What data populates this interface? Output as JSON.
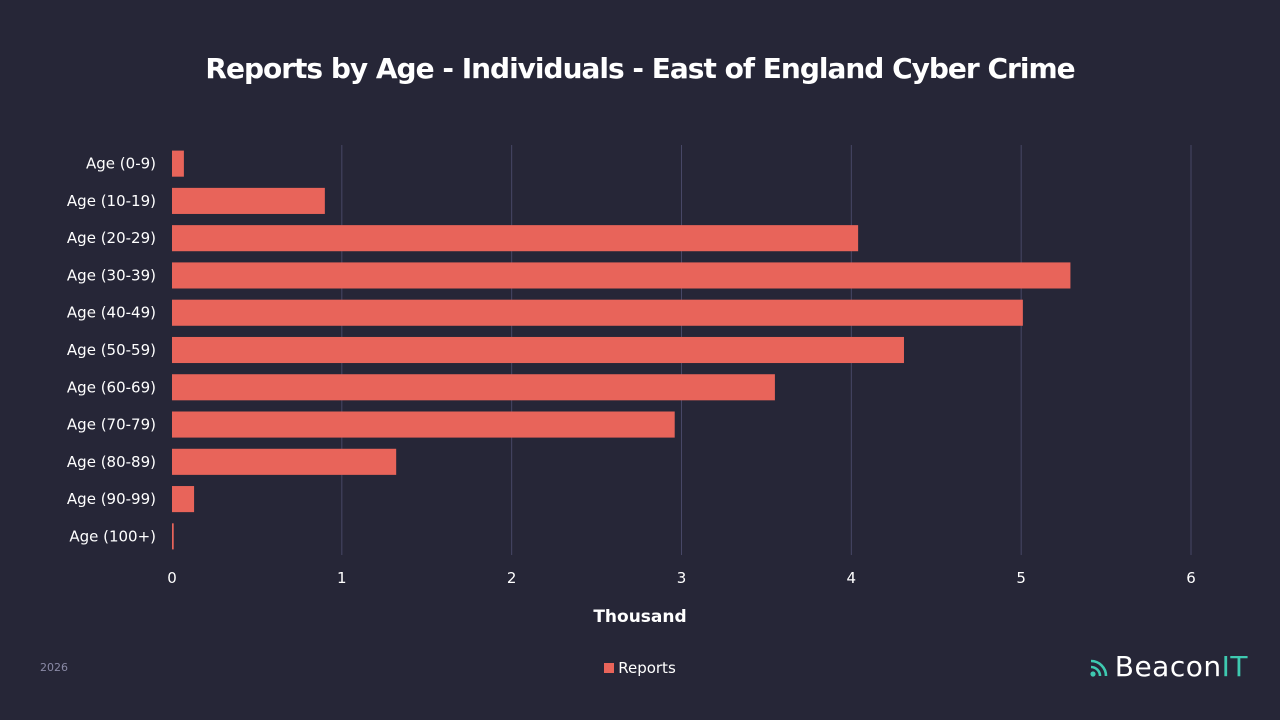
{
  "colors": {
    "background": "#262637",
    "bar": "#e8645a",
    "grid": "#474766",
    "brand_accent": "#3ec9b0"
  },
  "footer": {
    "year": "2026",
    "brand_main": "Beacon",
    "brand_accent": "IT",
    "brand_icon": "signal-icon"
  },
  "chart_data": {
    "type": "bar",
    "orientation": "horizontal",
    "title": "Reports by Age - Individuals - East of England Cyber Crime",
    "xlabel": "Thousand",
    "ylabel": "",
    "xlim": [
      0,
      6
    ],
    "x_ticks": [
      "0",
      "1",
      "2",
      "3",
      "4",
      "5",
      "6"
    ],
    "grid": true,
    "legend_position": "bottom",
    "categories": [
      "Age (0-9)",
      "Age (10-19)",
      "Age (20-29)",
      "Age (30-39)",
      "Age (40-49)",
      "Age (50-59)",
      "Age (60-69)",
      "Age (70-79)",
      "Age (80-89)",
      "Age (90-99)",
      "Age (100+)"
    ],
    "series": [
      {
        "name": "Reports",
        "values": [
          0.07,
          0.9,
          4.04,
          5.29,
          5.01,
          4.31,
          3.55,
          2.96,
          1.32,
          0.13,
          0.01
        ]
      }
    ]
  }
}
